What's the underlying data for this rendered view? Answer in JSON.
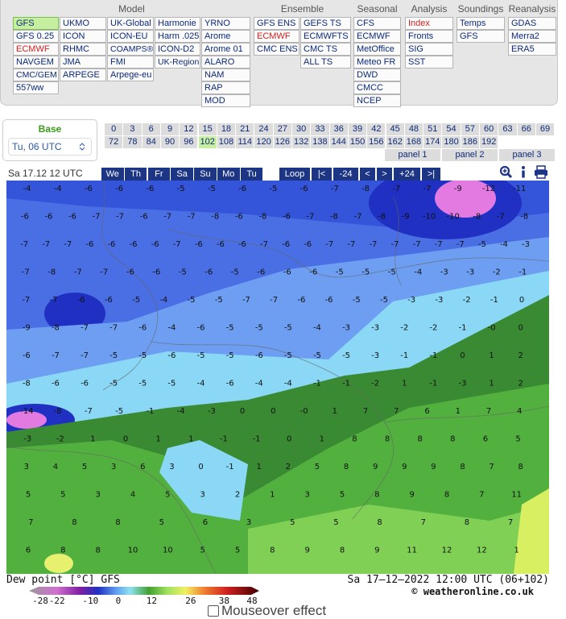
{
  "menu": [
    {
      "title": "Model",
      "columns": [
        [
          {
            "label": "GFS",
            "selected": true
          },
          "GFS 0.25",
          {
            "label": "ECMWF",
            "color": "#d62020"
          },
          "NAVGEM",
          "CMC/GEM",
          "557ww"
        ],
        [
          "UKMO",
          "ICON",
          "RHMC",
          "JMA",
          "ARPEGE"
        ],
        [
          "UK-Global",
          "ICON-EU",
          "COAMPS®",
          "FMI",
          "Arpege-eu"
        ],
        [
          "Harmonie",
          "Harm .025",
          "ICON-D2",
          "UK-Region"
        ],
        [
          "YRNO",
          "Arome",
          "Arome 01",
          "ALARO",
          "NAM",
          "RAP",
          "MOD"
        ]
      ]
    },
    {
      "title": "Ensemble",
      "columns": [
        [
          "GFS ENS",
          {
            "label": "ECMWF",
            "color": "#d62020"
          },
          "CMC ENS"
        ],
        [
          "GEFS TS",
          "ECMWFTS",
          "CMC TS",
          "ALL TS"
        ]
      ]
    },
    {
      "title": "Seasonal",
      "columns": [
        [
          "CFS",
          "ECMWF",
          "MetOffice",
          "Meteo FR",
          "DWD",
          "CMCC",
          "NCEP"
        ]
      ]
    },
    {
      "title": "Analysis",
      "columns": [
        [
          {
            "label": "Index",
            "color": "#d62020"
          },
          "Fronts",
          "SIG",
          "SST"
        ]
      ]
    },
    {
      "title": "Soundings",
      "columns": [
        [
          "Temps",
          "GFS"
        ]
      ]
    },
    {
      "title": "Reanalysis",
      "columns": [
        [
          "GDAS",
          "Merra2",
          "ERA5"
        ]
      ]
    }
  ],
  "base": {
    "label": "Base",
    "run": "Tu, 06 UTC"
  },
  "hours": {
    "rows": [
      [
        0,
        3,
        6,
        9,
        12,
        15,
        18,
        21,
        24,
        27,
        30,
        33,
        36,
        39,
        42,
        45,
        48,
        51,
        54,
        57,
        60,
        63,
        66,
        69
      ],
      [
        72,
        78,
        84,
        90,
        96,
        102,
        108,
        114,
        120,
        126,
        132,
        138,
        144,
        150,
        156,
        162,
        168,
        174,
        180,
        186,
        192
      ]
    ],
    "selected": 102,
    "panels": [
      "panel 1",
      "panel 2",
      "panel 3"
    ]
  },
  "toolbar": {
    "time": "Sa 17.12 12 UTC",
    "days": [
      "We",
      "Th",
      "Fr",
      "Sa",
      "Su",
      "Mo",
      "Tu"
    ],
    "controls": [
      "Loop",
      "|<",
      "-24",
      "<",
      ">",
      "+24",
      ">|"
    ]
  },
  "map": {
    "labels": [
      [
        -4,
        -4,
        -6,
        -6,
        -6,
        -5,
        -5,
        -6,
        -5,
        -6,
        -7,
        -8,
        -7,
        -7,
        -9,
        -12,
        -11
      ],
      [
        -6,
        -6,
        -6,
        -7,
        -7,
        -6,
        -7,
        -7,
        -8,
        -6,
        -8,
        -6,
        -7,
        -8,
        -7,
        -8,
        -9,
        -10,
        -10,
        -8,
        -7,
        -8
      ],
      [
        -7,
        -7,
        -7,
        -6,
        -6,
        -6,
        -6,
        -7,
        -6,
        -6,
        -6,
        -7,
        -6,
        -6,
        -7,
        -7,
        -7,
        -7,
        -7,
        -7,
        -7,
        -5,
        -4,
        -3
      ],
      [
        -7,
        -8,
        -7,
        -7,
        -6,
        -6,
        -5,
        -6,
        -5,
        -6,
        -6,
        -6,
        -5,
        -5,
        -5,
        -4,
        -3,
        -3,
        -2,
        -1
      ],
      [
        -7,
        -7,
        -6,
        -6,
        -5,
        -4,
        -5,
        -5,
        -7,
        -7,
        -6,
        -6,
        -5,
        -5,
        -3,
        -3,
        -2,
        -1,
        0
      ],
      [
        -9,
        -8,
        -7,
        -7,
        -6,
        -4,
        -6,
        -5,
        -5,
        -5,
        -4,
        -3,
        -3,
        -2,
        -2,
        -1,
        "-0",
        0
      ],
      [
        -6,
        -7,
        -7,
        -5,
        -5,
        -6,
        -5,
        -5,
        -6,
        -5,
        -5,
        -5,
        -3,
        -1,
        -1,
        0,
        1,
        2
      ],
      [
        -8,
        -6,
        -6,
        -5,
        -5,
        -5,
        -4,
        -6,
        -4,
        -4,
        -1,
        -1,
        -2,
        1,
        -1,
        -3,
        1,
        2
      ],
      [
        -14,
        -8,
        -7,
        -5,
        -1,
        -4,
        -3,
        0,
        0,
        "-0",
        1,
        7,
        7,
        6,
        1,
        7,
        4
      ],
      [
        -3,
        -2,
        1,
        0,
        1,
        1,
        -1,
        -1,
        0,
        1,
        8,
        8,
        8,
        8,
        6,
        5
      ],
      [
        3,
        4,
        5,
        3,
        6,
        3,
        0,
        -1,
        1,
        2,
        5,
        8,
        9,
        9,
        9,
        8,
        7,
        8
      ],
      [
        5,
        5,
        3,
        4,
        5,
        3,
        2,
        1,
        3,
        5,
        8,
        9,
        8,
        7,
        11
      ],
      [
        7,
        8,
        8,
        5,
        6,
        3,
        5,
        5,
        8,
        7,
        8,
        7
      ],
      [
        6,
        8,
        8,
        10,
        10,
        5,
        5,
        8,
        9,
        8,
        9,
        11,
        12,
        12,
        1
      ]
    ]
  },
  "legend": {
    "title": "Dew point [°C] GFS",
    "ticks": [
      -28,
      -22,
      -10,
      0,
      12,
      26,
      38,
      48
    ]
  },
  "valid": "Sa 17–12–2022 12:00 UTC (06+102)",
  "copyright": "© weatheronline.co.uk",
  "mouseover": "Mouseover effect"
}
